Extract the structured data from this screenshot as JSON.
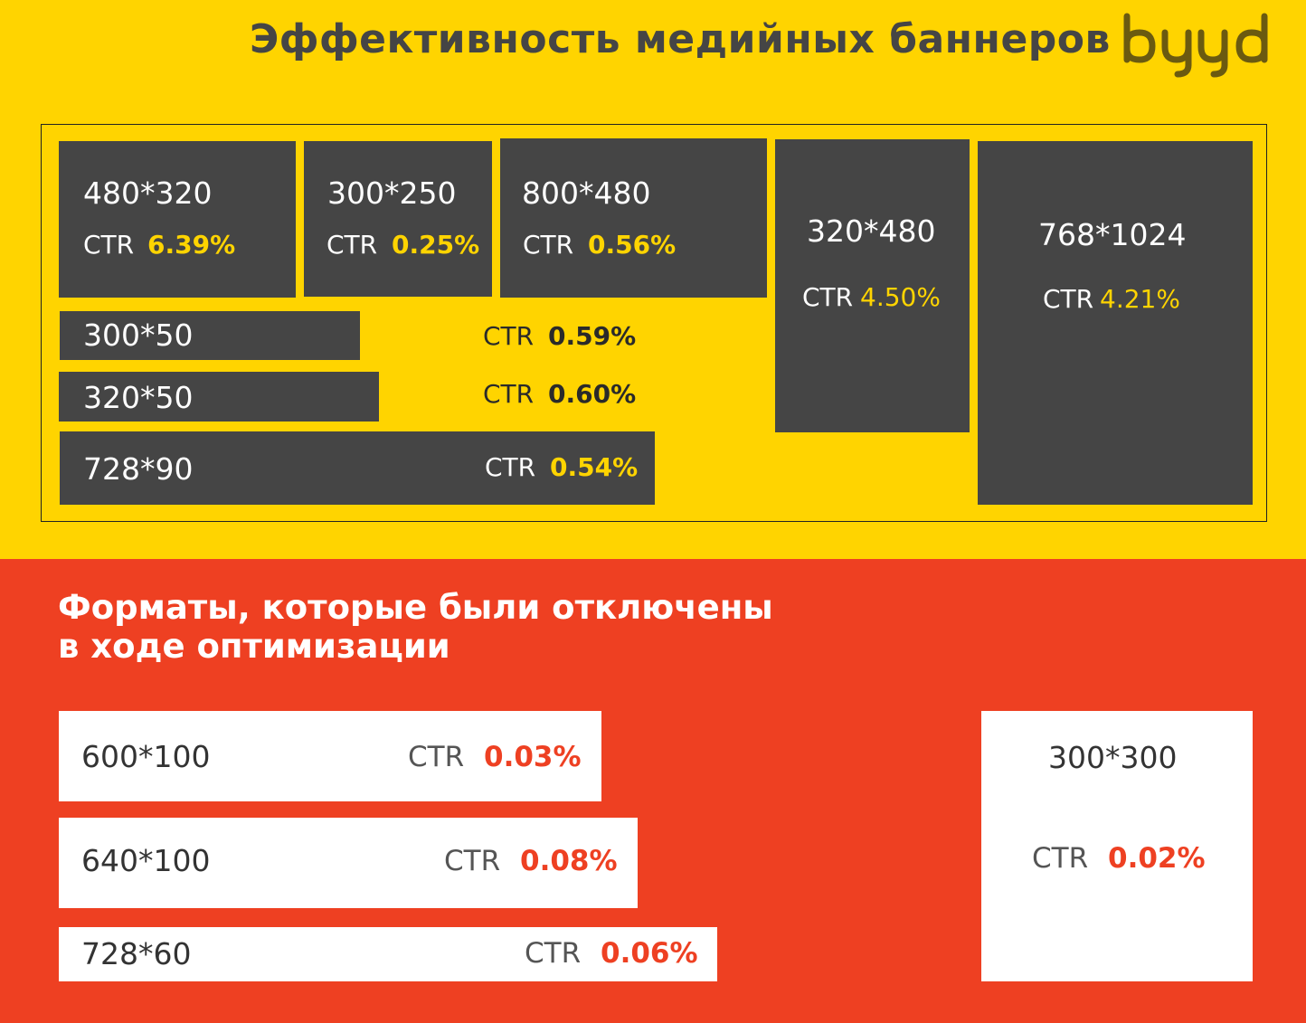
{
  "header": {
    "title": "Эффективность медийных баннеров",
    "logo_text": "byyd"
  },
  "ctr_label": "CTR",
  "active_banners": [
    {
      "size": "480*320",
      "ctr": "6.39%"
    },
    {
      "size": "300*250",
      "ctr": "0.25%"
    },
    {
      "size": "800*480",
      "ctr": "0.56%"
    },
    {
      "size": "320*480",
      "ctr": "4.50%"
    },
    {
      "size": "768*1024",
      "ctr": "4.21%"
    },
    {
      "size": "300*50",
      "ctr": "0.59%"
    },
    {
      "size": "320*50",
      "ctr": "0.60%"
    },
    {
      "size": "728*90",
      "ctr": "0.54%"
    }
  ],
  "disabled_section": {
    "heading_line1": "Форматы, которые были отключены",
    "heading_line2": "в ходе оптимизации"
  },
  "disabled_banners": [
    {
      "size": "600*100",
      "ctr": "0.03%"
    },
    {
      "size": "640*100",
      "ctr": "0.08%"
    },
    {
      "size": "728*60",
      "ctr": "0.06%"
    },
    {
      "size": "300*300",
      "ctr": "0.02%"
    }
  ],
  "colors": {
    "yellow": "#FFD400",
    "red": "#EE4022",
    "dark_gray": "#454545",
    "logo": "#6B5A10"
  }
}
